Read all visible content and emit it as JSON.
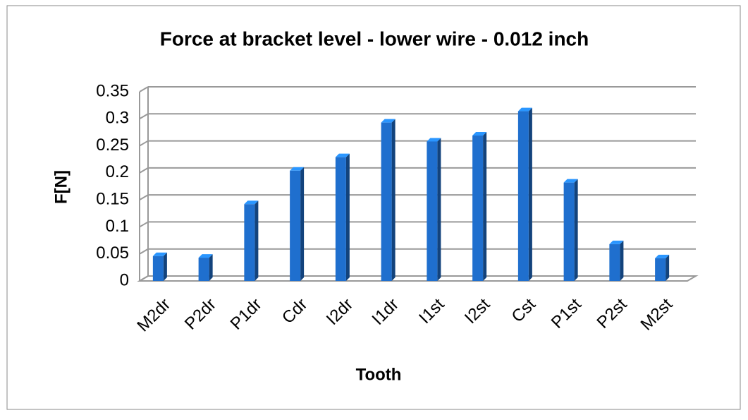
{
  "chart_data": {
    "type": "bar",
    "title": "Force at bracket level - lower wire - 0.012 inch",
    "x_label": "Tooth",
    "y_label": "F[N]",
    "categories": [
      "M2dr",
      "P2dr",
      "P1dr",
      "Cdr",
      "I2dr",
      "I1dr",
      "I1st",
      "I2st",
      "Cst",
      "P1st",
      "P2st",
      "M2st"
    ],
    "values": [
      0.046,
      0.043,
      0.142,
      0.204,
      0.229,
      0.293,
      0.258,
      0.269,
      0.314,
      0.182,
      0.068,
      0.042
    ],
    "color": "#1f6fce",
    "ylim": [
      0,
      0.35
    ],
    "yticks": [
      0,
      0.05,
      0.1,
      0.15,
      0.2,
      0.25,
      0.3,
      0.35
    ],
    "grid": true
  }
}
